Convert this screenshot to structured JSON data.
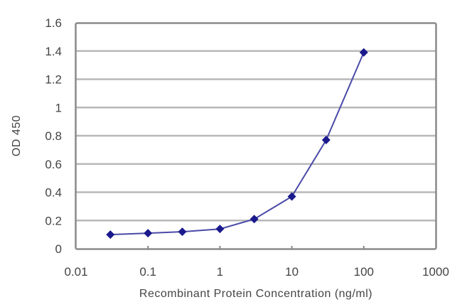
{
  "chart_data": {
    "type": "line",
    "title": "",
    "xlabel": "Recombinant Protein Concentration (ng/ml)",
    "ylabel": "OD 450",
    "x_scale": "log",
    "xlim": [
      0.01,
      1000
    ],
    "ylim": [
      0,
      1.6
    ],
    "x_ticks": [
      "0.01",
      "0.1",
      "1",
      "10",
      "100",
      "1000"
    ],
    "y_ticks": [
      "0",
      "0.2",
      "0.4",
      "0.6",
      "0.8",
      "1",
      "1.2",
      "1.4",
      "1.6"
    ],
    "grid": {
      "horizontal": true,
      "vertical": false
    },
    "legend": null,
    "series": [
      {
        "name": "OD 450",
        "color": "#1a1a8c",
        "marker": "diamond",
        "x": [
          0.03,
          0.1,
          0.3,
          1,
          3,
          10,
          30,
          100
        ],
        "values": [
          0.1,
          0.11,
          0.12,
          0.14,
          0.21,
          0.37,
          0.77,
          1.39
        ]
      }
    ]
  },
  "colors": {
    "gridline": "#b8b8b8",
    "axis_frame": "#888888",
    "series": "#1a1a8c",
    "line": "#4a4aa8"
  }
}
